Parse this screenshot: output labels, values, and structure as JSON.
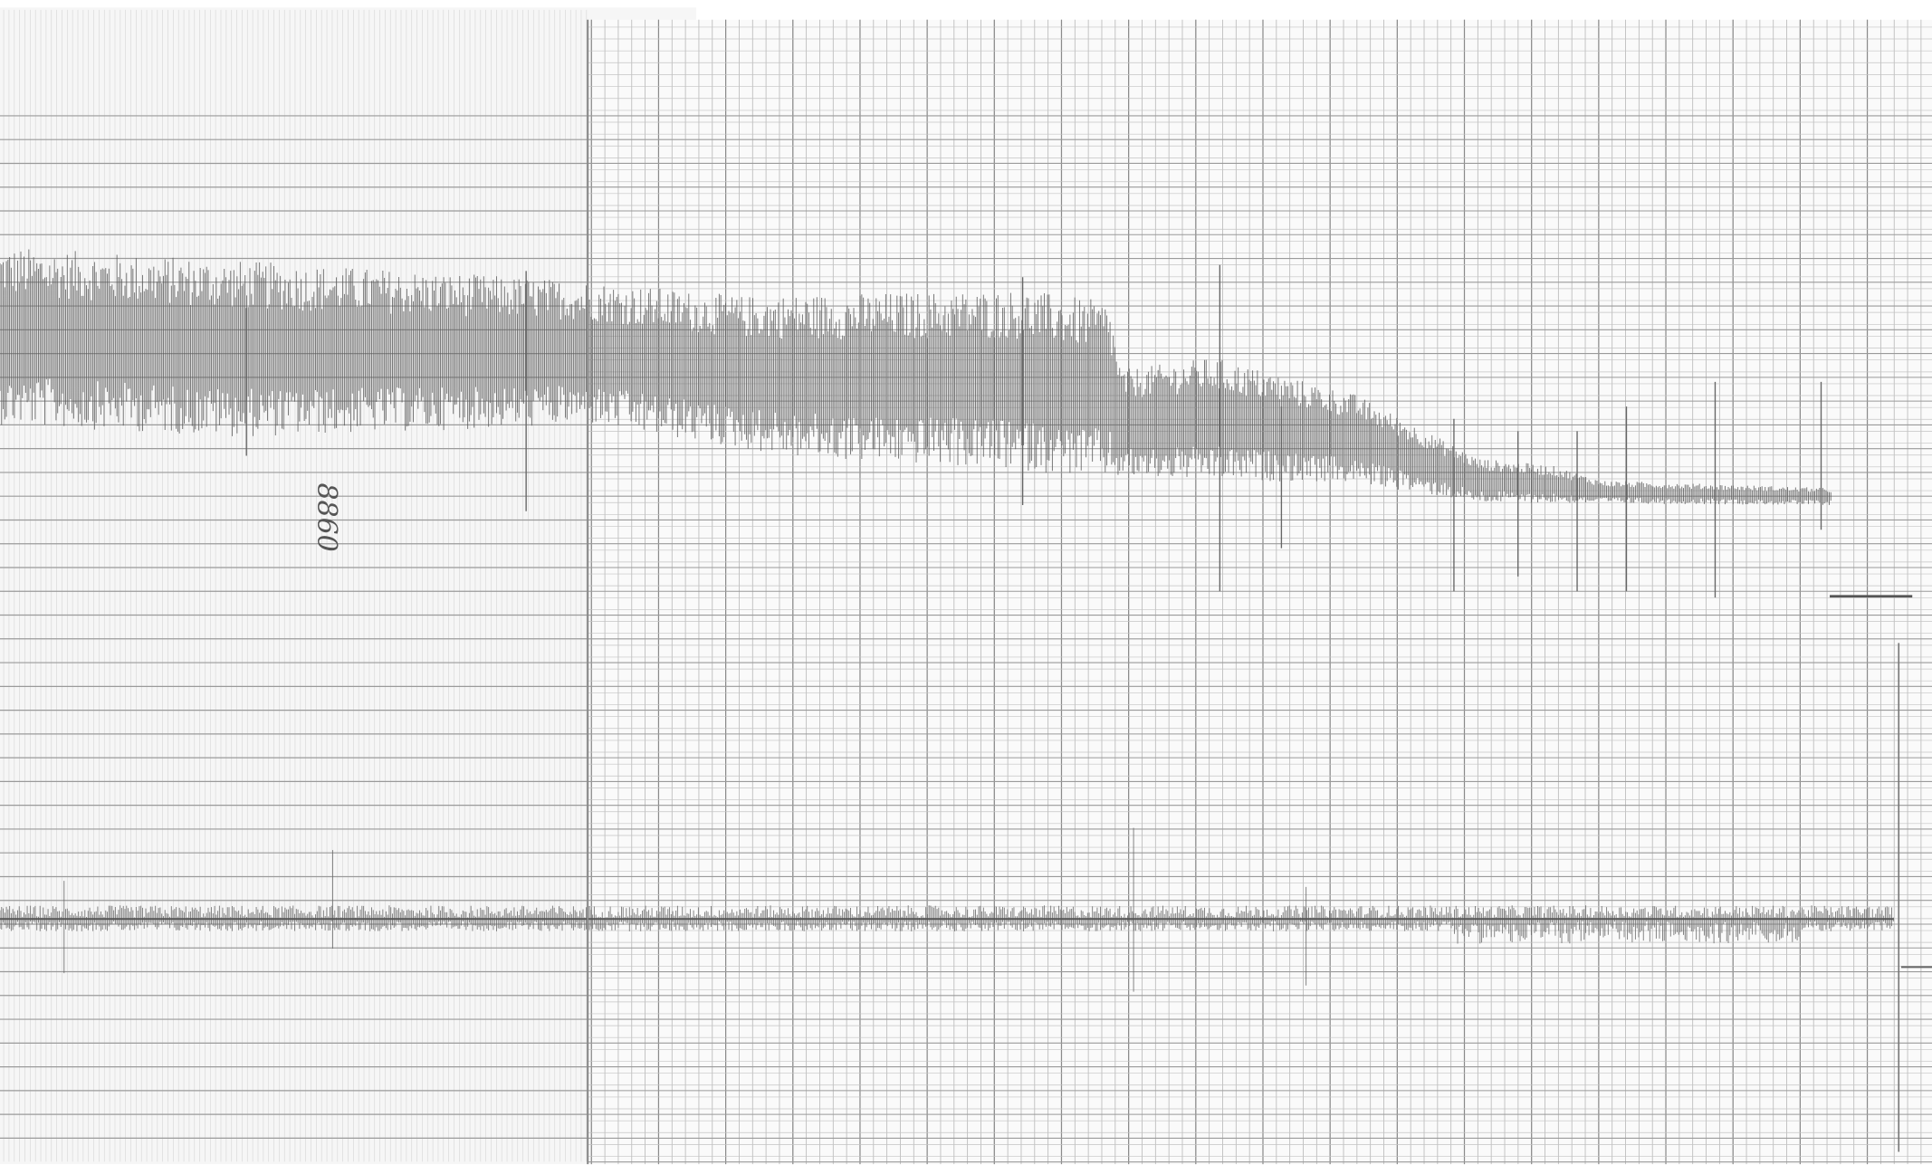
{
  "annotation": "8860"
}
